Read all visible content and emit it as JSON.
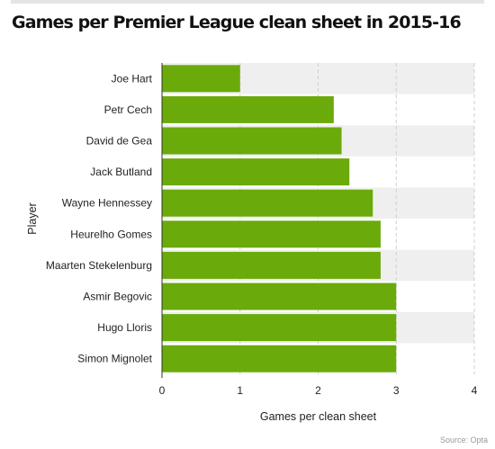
{
  "title": "Games per Premier League clean sheet in 2015-16",
  "source": "Source: Opta",
  "chart_data": {
    "type": "bar",
    "orientation": "horizontal",
    "title": "Games per Premier League clean sheet in 2015-16",
    "xlabel": "Games per clean sheet",
    "ylabel": "Player",
    "xlim": [
      0,
      4
    ],
    "xticks": [
      0,
      1,
      2,
      3,
      4
    ],
    "categories": [
      "Joe Hart",
      "Petr Cech",
      "David de Gea",
      "Jack Butland",
      "Wayne Hennessey",
      "Heurelho Gomes",
      "Maarten Stekelenburg",
      "Asmir Begovic",
      "Hugo Lloris",
      "Simon Mignolet"
    ],
    "values": [
      1.0,
      2.2,
      2.3,
      2.4,
      2.7,
      2.8,
      2.8,
      3.0,
      3.0,
      3.0
    ],
    "bar_color": "#6aaa0a",
    "grid": true,
    "legend": "none"
  }
}
